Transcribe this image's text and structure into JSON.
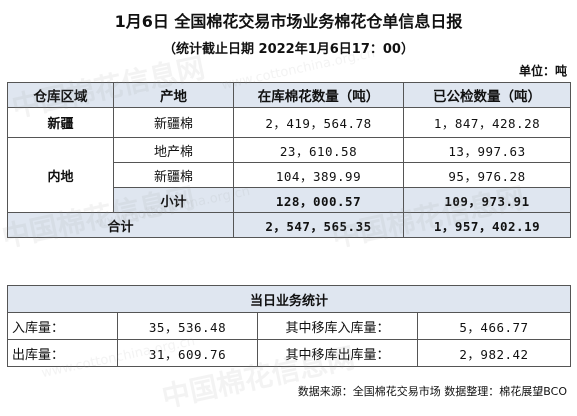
{
  "title": "1月6日 全国棉花交易市场业务棉花仓单信息日报",
  "subtitle": "（统计截止日期 2022年1月6日17：00）",
  "unit": "单位：吨",
  "main_table": {
    "headers": [
      "仓库区域",
      "产地",
      "在库棉花数量（吨）",
      "已公检数量（吨）"
    ],
    "xinjiang": {
      "region": "新疆",
      "origin": "新疆棉",
      "in_stock": "2，419，564.78",
      "inspected": "1，847，428.28"
    },
    "inland": {
      "region": "内地",
      "rows": [
        {
          "origin": "地产棉",
          "in_stock": "23，610.58",
          "inspected": "13，997.63"
        },
        {
          "origin": "新疆棉",
          "in_stock": "104，389.99",
          "inspected": "95，976.28"
        }
      ],
      "subtotal_label": "小计",
      "subtotal_in_stock": "128，000.57",
      "subtotal_inspected": "109，973.91"
    },
    "total": {
      "label": "合计",
      "in_stock": "2，547，565.35",
      "inspected": "1，957，402.19"
    }
  },
  "business_table": {
    "header": "当日业务统计",
    "rows": [
      {
        "label1": "入库量：",
        "value1": "35，536.48",
        "label2": "其中移库入库量：",
        "value2": "5，466.77"
      },
      {
        "label1": "出库量：",
        "value1": "31，609.76",
        "label2": "其中移库出库量：",
        "value2": "2，982.42"
      }
    ]
  },
  "footer": "数据来源：全国棉花交易市场 数据整理：棉花展望BCO",
  "watermark": {
    "text": "中国棉花信息网",
    "url": "www.cottonchina.org.cn"
  }
}
